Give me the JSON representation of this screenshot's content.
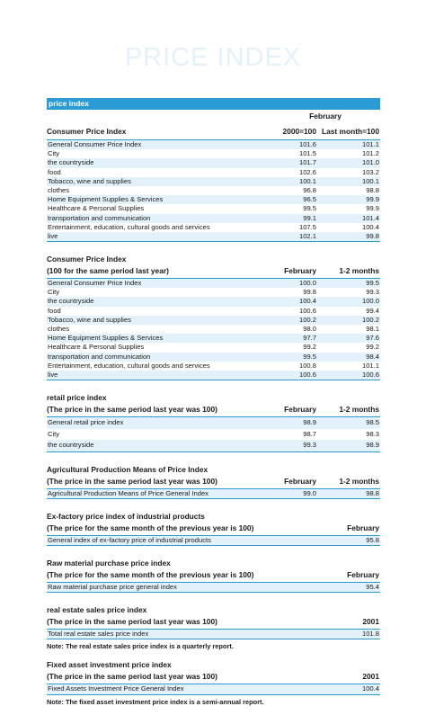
{
  "page_title": "PRICE INDEX",
  "bar_title": "price index",
  "s1": {
    "month": "February",
    "title": "Consumer Price Index",
    "col1": "2000=100",
    "col2": "Last month=100",
    "rows": [
      {
        "label": "General Consumer Price Index",
        "v1": "101.6",
        "v2": "101.1"
      },
      {
        "label": "City",
        "v1": "101.5",
        "v2": "101.2"
      },
      {
        "label": "the countryside",
        "v1": "101.7",
        "v2": "101.0"
      },
      {
        "label": "food",
        "v1": "102.6",
        "v2": "103.2"
      },
      {
        "label": "Tobacco, wine and supplies",
        "v1": "100.1",
        "v2": "100.1"
      },
      {
        "label": "clothes",
        "v1": "96.8",
        "v2": "98.8"
      },
      {
        "label": "Home Equipment Supplies & Services",
        "v1": "96.5",
        "v2": "99.9"
      },
      {
        "label": "Healthcare & Personal Supplies",
        "v1": "99.5",
        "v2": "99.9"
      },
      {
        "label": "transportation and communication",
        "v1": "99.1",
        "v2": "101.4"
      },
      {
        "label": "Entertainment, education, cultural goods and services",
        "v1": "107.5",
        "v2": "100.4"
      },
      {
        "label": "live",
        "v1": "102.1",
        "v2": "99.8"
      }
    ]
  },
  "s2": {
    "title": "Consumer Price Index",
    "subtitle": "(100 for the same period last year)",
    "col1": "February",
    "col2": "1-2 months",
    "rows": [
      {
        "label": "General Consumer Price Index",
        "v1": "100.0",
        "v2": "99.5"
      },
      {
        "label": "City",
        "v1": "99.8",
        "v2": "99.3"
      },
      {
        "label": "the countryside",
        "v1": "100.4",
        "v2": "100.0"
      },
      {
        "label": "food",
        "v1": "100.6",
        "v2": "99.4"
      },
      {
        "label": "Tobacco, wine and supplies",
        "v1": "100.2",
        "v2": "100.2"
      },
      {
        "label": "clothes",
        "v1": "98.0",
        "v2": "98.1"
      },
      {
        "label": "Home Equipment Supplies & Services",
        "v1": "97.7",
        "v2": "97.6"
      },
      {
        "label": "Healthcare & Personal Supplies",
        "v1": "99.2",
        "v2": "99.2"
      },
      {
        "label": "transportation and communication",
        "v1": "99.5",
        "v2": "98.4"
      },
      {
        "label": "Entertainment, education, cultural goods and services",
        "v1": "100.8",
        "v2": "101.1"
      },
      {
        "label": "live",
        "v1": "100.6",
        "v2": "100.6"
      }
    ]
  },
  "s3": {
    "title": "retail price index",
    "subtitle": "(The price in the same period last year was 100)",
    "col1": "February",
    "col2": "1-2 months",
    "rows": [
      {
        "label": "General retail price index",
        "v1": "98.9",
        "v2": "98.5"
      },
      {
        "label": "City",
        "v1": "98.7",
        "v2": "98.3"
      },
      {
        "label": "the countryside",
        "v1": "99.3",
        "v2": "98.9"
      }
    ]
  },
  "s4": {
    "title": "Agricultural Production Means of Price Index",
    "subtitle": "(The price in the same period last year was 100)",
    "col1": "February",
    "col2": "1-2 months",
    "rows": [
      {
        "label": "Agricultural Production Means of Price General Index",
        "v1": "99.0",
        "v2": "98.8"
      }
    ]
  },
  "s5": {
    "title": "Ex-factory price index of industrial products",
    "subtitle": "(The price for the same month of the previous year is 100)",
    "col2": "February",
    "rows": [
      {
        "label": "General index of ex-factory price of industrial products",
        "v2": "95.8"
      }
    ]
  },
  "s6": {
    "title": "Raw material purchase price index",
    "subtitle": "(The price for the same month of the previous year is 100)",
    "col2": "February",
    "rows": [
      {
        "label": "Raw material purchase price general index",
        "v2": "95.4"
      }
    ]
  },
  "s7": {
    "title": "real estate sales price index",
    "subtitle": "(The price in the same period last year was 100)",
    "col2": "2001",
    "rows": [
      {
        "label": "Total real estate sales price index",
        "v2": "101.8"
      }
    ],
    "note": "Note: The real estate sales price index is a quarterly report."
  },
  "s8": {
    "title": "Fixed asset investment price index",
    "subtitle": "(The price in the same period last year was 100)",
    "col2": "2001",
    "rows": [
      {
        "label": "Fixed Assets Investment Price General Index",
        "v2": "100.4"
      }
    ],
    "note": "Note: The fixed asset investment price index is a semi-annual report."
  }
}
